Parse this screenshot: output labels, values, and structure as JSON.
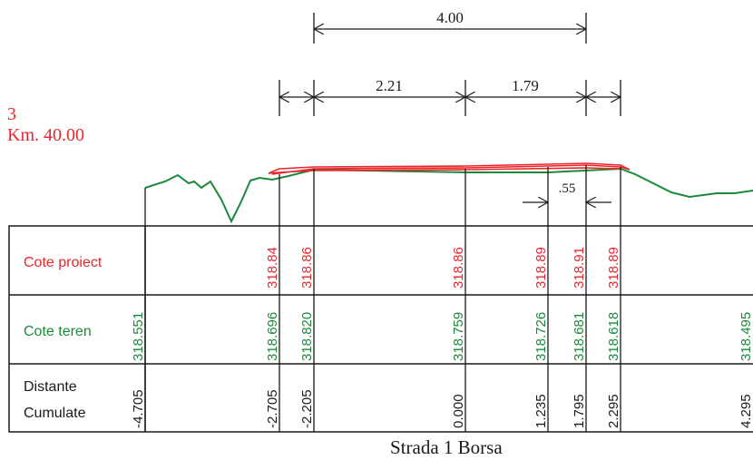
{
  "section": {
    "number": "3",
    "km": "Km. 40.00",
    "caption": "Strada 1 Borsa"
  },
  "dimensions": {
    "total": "4.00",
    "left": "2.21",
    "right": "1.79",
    "small": ".55"
  },
  "table": {
    "row_labels": {
      "project": "Cote proiect",
      "terrain": "Cote teren",
      "distance_line1": "Distante",
      "distance_line2": "Cumulate"
    }
  },
  "columns": [
    {
      "distance": "-4.705",
      "terrain": "318.551",
      "project": ""
    },
    {
      "distance": "-2.705",
      "terrain": "318.696",
      "project": "318.84"
    },
    {
      "distance": "-2.205",
      "terrain": "318.820",
      "project": "318.86"
    },
    {
      "distance": "0.000",
      "terrain": "318.759",
      "project": "318.86"
    },
    {
      "distance": "1.235",
      "terrain": "318.726",
      "project": "318.89"
    },
    {
      "distance": "1.795",
      "terrain": "318.681",
      "project": "318.91"
    },
    {
      "distance": "2.295",
      "terrain": "318.618",
      "project": "318.89"
    },
    {
      "distance": "4.295",
      "terrain": "318.495",
      "project": ""
    }
  ],
  "colors": {
    "project": "#e8262c",
    "terrain": "#1a8a3a",
    "ink": "#1a1a1a"
  }
}
